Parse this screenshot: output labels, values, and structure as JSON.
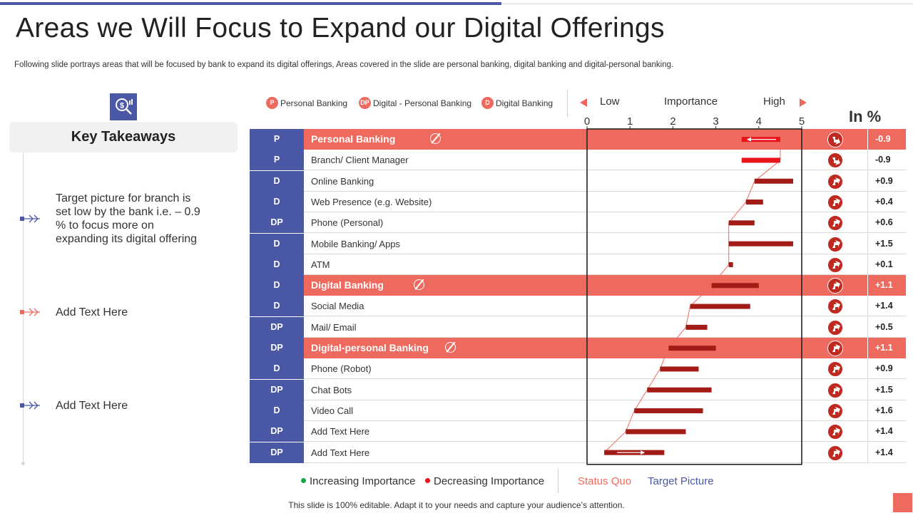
{
  "title": "Areas we Will Focus to Expand our Digital Offerings",
  "subtitle": "Following slide portrays areas that will be focused by bank to expand its digital offerings, Areas covered in the slide are personal banking, digital banking and digital-personal banking.",
  "key_takeaways": {
    "heading": "Key Takeaways",
    "items": [
      {
        "text": "Target picture for branch is set low by the bank i.e. – 0.9 % to focus more on expanding its digital offering",
        "color": "#4a58a6"
      },
      {
        "text": "Add Text Here",
        "color": "#ef6a5e"
      },
      {
        "text": "Add Text Here",
        "color": "#4a58a6"
      }
    ]
  },
  "legend": [
    {
      "badge": "P",
      "label": "Personal Banking"
    },
    {
      "badge": "DP",
      "label": "Digital - Personal Banking"
    },
    {
      "badge": "D",
      "label": "Digital Banking"
    }
  ],
  "importance": {
    "low": "Low",
    "label": "Importance",
    "high": "High",
    "ticks": [
      "0",
      "1",
      "2",
      "3",
      "4",
      "5"
    ]
  },
  "in_pct_label": "In %",
  "rows": [
    {
      "code": "P",
      "name": "Personal Banking",
      "header": true,
      "pct": "-0.9",
      "trend": "down"
    },
    {
      "code": "P",
      "name": "Branch/ Client Manager",
      "header": false,
      "pct": "-0.9",
      "trend": "down"
    },
    {
      "code": "D",
      "name": "Online Banking",
      "header": false,
      "pct": "+0.9",
      "trend": "up"
    },
    {
      "code": "D",
      "name": "Web Presence (e.g. Website)",
      "header": false,
      "pct": "+0.4",
      "trend": "up"
    },
    {
      "code": "DP",
      "name": "Phone (Personal)",
      "header": false,
      "pct": "+0.6",
      "trend": "up"
    },
    {
      "code": "D",
      "name": "Mobile Banking/ Apps",
      "header": false,
      "pct": "+1.5",
      "trend": "up"
    },
    {
      "code": "D",
      "name": "ATM",
      "header": false,
      "pct": "+0.1",
      "trend": "up"
    },
    {
      "code": "D",
      "name": "Digital Banking",
      "header": true,
      "pct": "+1.1",
      "trend": "up"
    },
    {
      "code": "D",
      "name": "Social Media",
      "header": false,
      "pct": "+1.4",
      "trend": "up"
    },
    {
      "code": "DP",
      "name": "Mail/ Email",
      "header": false,
      "pct": "+0.5",
      "trend": "up"
    },
    {
      "code": "DP",
      "name": "Digital-personal Banking",
      "header": true,
      "pct": "+1.1",
      "trend": "up"
    },
    {
      "code": "D",
      "name": "Phone (Robot)",
      "header": false,
      "pct": "+0.9",
      "trend": "up"
    },
    {
      "code": "DP",
      "name": "Chat Bots",
      "header": false,
      "pct": "+1.5",
      "trend": "up"
    },
    {
      "code": "D",
      "name": "Video Call",
      "header": false,
      "pct": "+1.6",
      "trend": "up"
    },
    {
      "code": "DP",
      "name": "Add Text Here",
      "header": false,
      "pct": "+1.4",
      "trend": "up"
    },
    {
      "code": "DP",
      "name": "Add Text Here",
      "header": false,
      "pct": "+1.4",
      "trend": "up"
    }
  ],
  "chart_data": {
    "type": "bar",
    "xlim": [
      0,
      5
    ],
    "series": [
      {
        "name": "Status Quo",
        "values": [
          4.5,
          4.5,
          3.9,
          3.7,
          3.3,
          3.3,
          3.3,
          2.9,
          2.4,
          2.3,
          1.9,
          1.7,
          1.4,
          1.1,
          0.9,
          0.4
        ]
      },
      {
        "name": "Target Picture",
        "values": [
          3.6,
          3.6,
          4.8,
          4.1,
          3.9,
          4.8,
          3.4,
          4.0,
          3.8,
          2.8,
          3.0,
          2.6,
          2.9,
          2.7,
          2.3,
          1.8
        ]
      }
    ]
  },
  "bottom_legend": {
    "increasing": "Increasing Importance",
    "decreasing": "Decreasing Importance",
    "status_quo": "Status Quo",
    "target": "Target Picture"
  },
  "colors": {
    "blue": "#4a58a6",
    "coral": "#ef6a5e",
    "dark_red": "#a31b16",
    "red": "#e8141b",
    "green": "#19a34a"
  },
  "footer": "This slide is 100% editable. Adapt it to your needs and capture your audience’s attention."
}
